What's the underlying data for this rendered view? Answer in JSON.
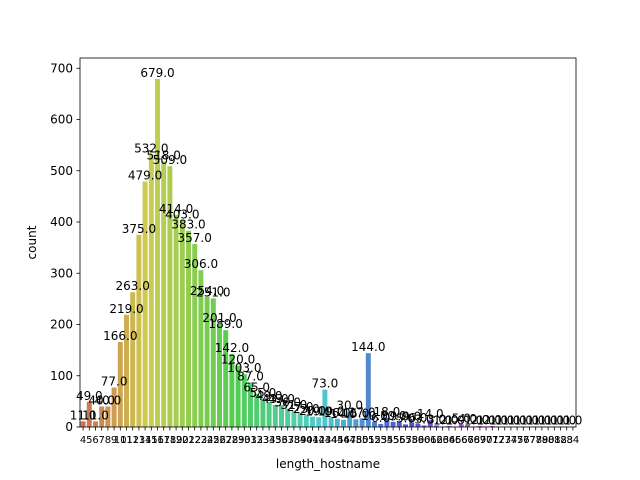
{
  "chart_data": {
    "type": "bar",
    "title": "",
    "xlabel": "length_hostname",
    "ylabel": "count",
    "ylim": [
      0,
      720
    ],
    "yticks": [
      0,
      100,
      200,
      300,
      400,
      500,
      600,
      700
    ],
    "grid": false,
    "legend": "none",
    "categories": [
      "4",
      "5",
      "6",
      "7",
      "8",
      "9",
      "10",
      "11",
      "12",
      "13",
      "14",
      "15",
      "16",
      "17",
      "18",
      "19",
      "20",
      "21",
      "22",
      "23",
      "24",
      "25",
      "26",
      "27",
      "28",
      "29",
      "30",
      "31",
      "32",
      "33",
      "34",
      "35",
      "36",
      "37",
      "38",
      "39",
      "40",
      "41",
      "42",
      "43",
      "44",
      "45",
      "46",
      "47",
      "48",
      "50",
      "51",
      "52",
      "53",
      "54",
      "55",
      "56",
      "57",
      "58",
      "59",
      "60",
      "61",
      "62",
      "63",
      "64",
      "65",
      "66",
      "67",
      "68",
      "69",
      "70",
      "71",
      "72",
      "73",
      "74",
      "75",
      "76",
      "77",
      "78",
      "79",
      "80",
      "81",
      "82",
      "83",
      "84"
    ],
    "values": [
      11.0,
      49.0,
      11.0,
      40.0,
      40.0,
      77.0,
      166.0,
      219.0,
      263.0,
      375.0,
      479.0,
      532.0,
      679.0,
      518.0,
      509.0,
      414.0,
      403.0,
      383.0,
      357.0,
      306.0,
      254.0,
      251.0,
      201.0,
      189.0,
      142.0,
      120.0,
      103.0,
      87.0,
      65.0,
      55.0,
      49.0,
      43.0,
      43.0,
      36.0,
      31.0,
      27.0,
      23.0,
      20.0,
      19.0,
      73.0,
      19.0,
      16.0,
      14.0,
      30.0,
      15.0,
      17.0,
      144.0,
      10.0,
      6.0,
      18.0,
      10.0,
      9.0,
      5.0,
      9.0,
      6.0,
      3.0,
      14.0,
      3.0,
      1.0,
      2.0,
      1.0,
      5.0,
      4.0,
      1.0,
      2.0,
      1.0,
      2.0,
      1.0,
      1.0,
      1.0,
      1.0,
      1.0,
      1.0,
      1.0,
      1.0,
      1.0,
      1.0,
      1.0,
      1.0,
      1.0
    ],
    "value_labels": [
      "11.0",
      "49.0",
      "11.0",
      "40.0",
      "40.0",
      "77.0",
      "166.0",
      "219.0",
      "263.0",
      "375.0",
      "479.0",
      "532.0",
      "679.0",
      "518.0",
      "509.0",
      "414.0",
      "403.0",
      "383.0",
      "357.0",
      "306.0",
      "254.0",
      "251.0",
      "201.0",
      "189.0",
      "142.0",
      "120.0",
      "103.0",
      "87.0",
      "65.0",
      "55.0",
      "49.0",
      "43.0",
      "43.0",
      "36.0",
      "31.0",
      "27.0",
      "23.0",
      "20.0",
      "19.0",
      "73.0",
      "19.0",
      "16.0",
      "14.0",
      "30.0",
      "15.0",
      "17.0",
      "144.0",
      "10.0",
      "6.0",
      "18.0",
      "10.0",
      "9.0",
      "5.0",
      "9.0",
      "6.0",
      "3.0",
      "14.0",
      "3.0",
      "1.0",
      "2.0",
      "1.0",
      "5.0",
      "4.0",
      "1.0",
      "2.0",
      "1.0",
      "2.0",
      "1.0",
      "1.0",
      "1.0",
      "1.0",
      "1.0",
      "1.0",
      "1.0",
      "1.0",
      "1.0",
      "1.0",
      "1.0",
      "1.0",
      "1.0"
    ]
  }
}
